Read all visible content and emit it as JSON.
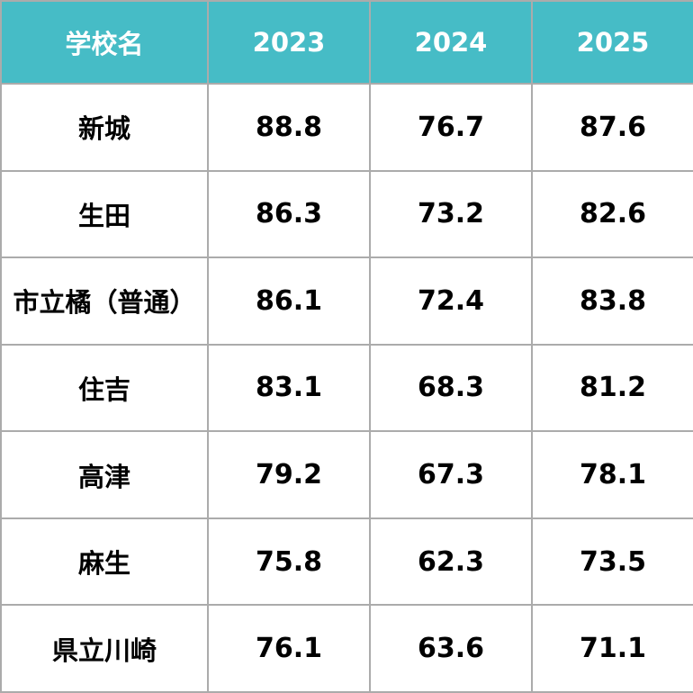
{
  "table": {
    "header": {
      "school_col": "学校名",
      "year_cols": [
        "2023",
        "2024",
        "2025"
      ]
    },
    "rows": [
      {
        "school": "新城",
        "cells": [
          "88.8",
          "76.7",
          "87.6"
        ]
      },
      {
        "school": "生田",
        "cells": [
          "86.3",
          "73.2",
          "82.6"
        ]
      },
      {
        "school": "市立橘（普通）",
        "cells": [
          "86.1",
          "72.4",
          "83.8"
        ]
      },
      {
        "school": "住吉",
        "cells": [
          "83.1",
          "68.3",
          "81.2"
        ]
      },
      {
        "school": "高津",
        "cells": [
          "79.2",
          "67.3",
          "78.1"
        ]
      },
      {
        "school": "麻生",
        "cells": [
          "75.8",
          "62.3",
          "73.5"
        ]
      },
      {
        "school": "県立川崎",
        "cells": [
          "76.1",
          "63.6",
          "71.1"
        ]
      }
    ]
  },
  "colors": {
    "header_bg": "#46BCC6",
    "header_text": "#FFFFFF",
    "border": "#ABABAB",
    "body_bg": "#FFFFFF",
    "body_text": "#000000"
  },
  "chart_data": {
    "type": "table",
    "title": "",
    "columns": [
      "学校名",
      "2023",
      "2024",
      "2025"
    ],
    "rows": [
      [
        "新城",
        88.8,
        76.7,
        87.6
      ],
      [
        "生田",
        86.3,
        73.2,
        82.6
      ],
      [
        "市立橘（普通）",
        86.1,
        72.4,
        83.8
      ],
      [
        "住吉",
        83.1,
        68.3,
        81.2
      ],
      [
        "高津",
        79.2,
        67.3,
        78.1
      ],
      [
        "麻生",
        75.8,
        62.3,
        73.5
      ],
      [
        "県立川崎",
        76.1,
        63.6,
        71.1
      ]
    ]
  }
}
